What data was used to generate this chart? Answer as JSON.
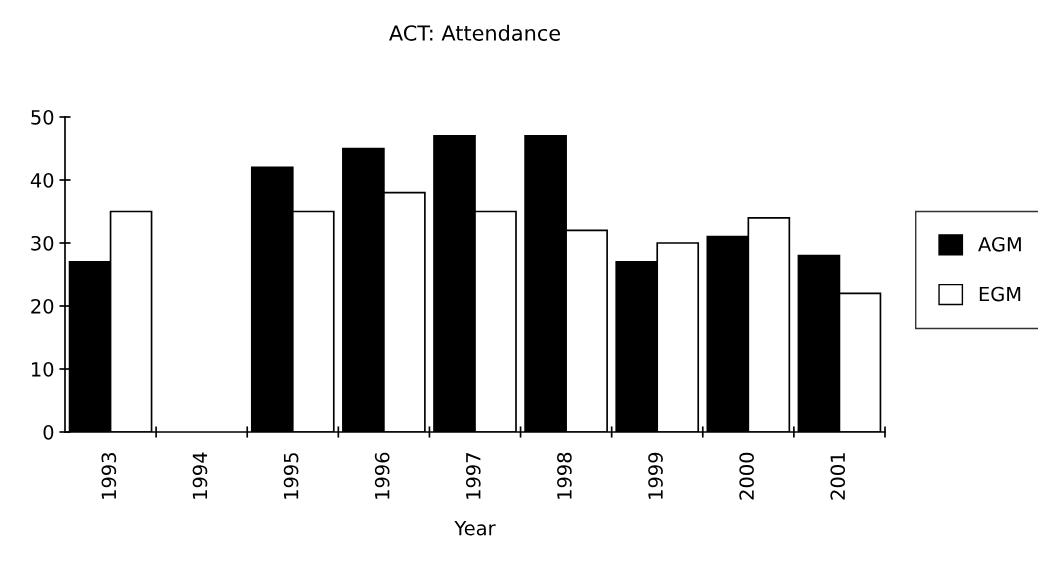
{
  "chart_data": {
    "type": "bar",
    "title": "ACT: Attendance",
    "xlabel": "Year",
    "categories": [
      "1993",
      "1994",
      "1995",
      "1996",
      "1997",
      "1998",
      "1999",
      "2000",
      "2001"
    ],
    "series": [
      {
        "name": "AGM",
        "color": "#000000",
        "values": [
          27,
          null,
          42,
          45,
          47,
          47,
          27,
          31,
          28
        ]
      },
      {
        "name": "EGM",
        "color": "#ffffff",
        "values": [
          35,
          null,
          35,
          38,
          35,
          32,
          30,
          34,
          22
        ]
      }
    ],
    "ylim": [
      0,
      50
    ],
    "yticks": [
      0,
      10,
      20,
      30,
      40,
      50
    ],
    "grid": false,
    "legend": "right"
  }
}
